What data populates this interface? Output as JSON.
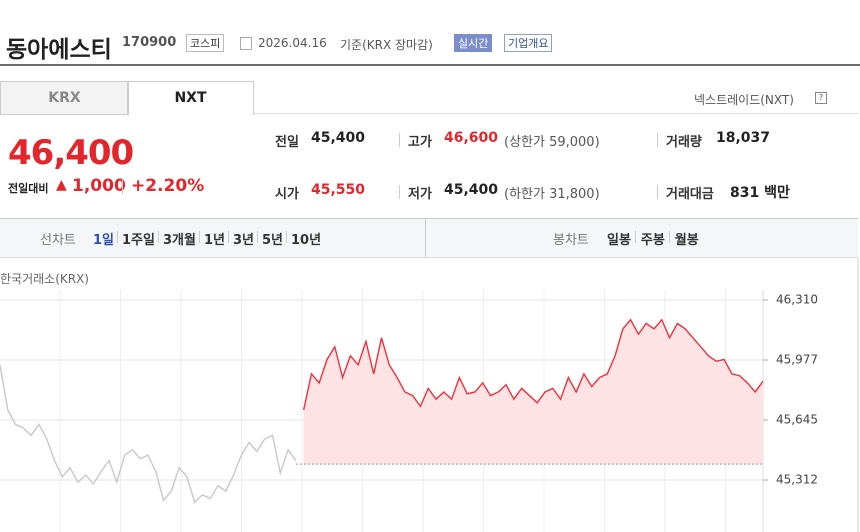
{
  "header": {
    "name": "동아에스티",
    "code": "170900",
    "market": "코스피",
    "date": "2026.04.16",
    "basis": "기준(KRX 장마감)",
    "badge_realtime": "실시간",
    "badge_company": "기업개요"
  },
  "tabs": [
    "KRX",
    "NXT"
  ],
  "nxt_link": "넥스트레이드(NXT)",
  "price": {
    "current": "46,400",
    "change_label": "전일대비",
    "change": "1,000",
    "change_rate": "+2.20%"
  },
  "stats": [
    [
      {
        "label": "전일",
        "value": "45,400"
      },
      {
        "label": "고가",
        "value": "46,600",
        "extra": "(상한가 59,000)"
      },
      {
        "label": "거래량",
        "value": "18,037"
      }
    ],
    [
      {
        "label": "시가",
        "value": "45,550"
      },
      {
        "label": "저가",
        "value": "45,400",
        "extra": "(하한가 31,800)"
      },
      {
        "label": "거래대금",
        "value": "831 백만"
      }
    ]
  ],
  "periods": {
    "line_label": "선차트",
    "line": [
      "1일",
      "1주일",
      "3개월",
      "1년",
      "3년",
      "5년",
      "10년"
    ],
    "candle_label": "봉차트",
    "candle": [
      "일봉",
      "주봉",
      "월봉"
    ]
  },
  "chart_data": {
    "type": "line",
    "source": "한국거래소(KRX)",
    "ylim": [
      45024,
      46365
    ],
    "yticks": [
      {
        "value": 46310,
        "label": "46,310"
      },
      {
        "value": 45977,
        "label": "45,977"
      },
      {
        "value": 45645,
        "label": "45,645"
      },
      {
        "value": 45312,
        "label": "45,312"
      }
    ],
    "reference": 45400,
    "series": [
      {
        "color": "#c8c8c8",
        "values": [
          45950,
          45700,
          45620,
          45600,
          45560,
          45620,
          45540,
          45420,
          45330,
          45380,
          45300,
          45340,
          45290,
          45360,
          45420,
          45300,
          45450,
          45480,
          45430,
          45450,
          45360,
          45200,
          45250,
          45380,
          45330,
          45190,
          45230,
          45210,
          45280,
          45250,
          45340,
          45450,
          45520,
          45470,
          45540,
          45560,
          45350,
          45480,
          45420,
          null,
          null,
          null,
          null,
          null,
          null,
          null,
          null,
          null,
          null,
          null,
          null,
          null,
          null,
          null,
          null,
          null,
          null,
          null,
          null,
          null,
          null,
          null,
          null,
          null,
          null,
          null,
          null,
          null,
          null,
          null,
          null,
          null,
          null,
          null,
          null,
          null,
          null,
          null,
          null,
          null,
          null,
          null,
          null,
          null,
          null,
          null,
          null,
          null,
          null,
          null,
          null,
          null,
          null,
          null,
          null,
          null,
          null,
          null,
          null
        ]
      },
      {
        "color": "#f0303a",
        "fill": "#fde3e4",
        "values": [
          null,
          null,
          null,
          null,
          null,
          null,
          null,
          null,
          null,
          null,
          null,
          null,
          null,
          null,
          null,
          null,
          null,
          null,
          null,
          null,
          null,
          null,
          null,
          null,
          null,
          null,
          null,
          null,
          null,
          null,
          null,
          null,
          null,
          null,
          null,
          null,
          null,
          null,
          null,
          45700,
          45900,
          45850,
          45980,
          46050,
          45880,
          46000,
          45950,
          46080,
          45900,
          46100,
          45950,
          45880,
          45800,
          45780,
          45720,
          45820,
          45760,
          45800,
          45760,
          45880,
          45790,
          45800,
          45850,
          45780,
          45800,
          45840,
          45760,
          45820,
          45780,
          45740,
          45800,
          45820,
          45760,
          45880,
          45800,
          45900,
          45830,
          45880,
          45900,
          46000,
          46150,
          46200,
          46120,
          46180,
          46150,
          46200,
          46100,
          46180,
          46150,
          46100,
          46050,
          46000,
          45970,
          45980,
          45900,
          45890,
          45850,
          45800,
          45860
        ]
      }
    ]
  }
}
